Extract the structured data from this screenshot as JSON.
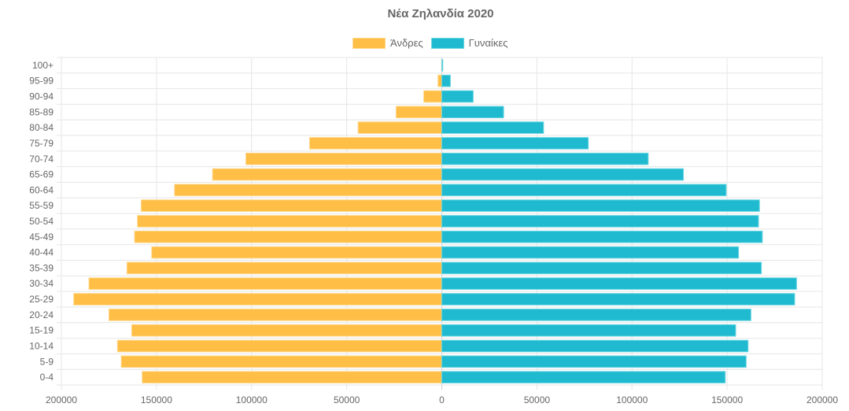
{
  "chart_data": {
    "type": "bar",
    "orientation": "horizontal",
    "title": "Νέα Ζηλανδία 2020",
    "categories": [
      "100+",
      "95-99",
      "90-94",
      "85-89",
      "80-84",
      "75-79",
      "70-74",
      "65-69",
      "60-64",
      "55-59",
      "50-54",
      "45-49",
      "40-44",
      "35-39",
      "30-34",
      "25-29",
      "20-24",
      "15-19",
      "10-14",
      "5-9",
      "0-4"
    ],
    "series": [
      {
        "name": "Άνδρες",
        "color": "#ffbe45",
        "border": "#ffd78a",
        "values": [
          -100,
          -2000,
          -9500,
          -24000,
          -44000,
          -69500,
          -103000,
          -120500,
          -140500,
          -158000,
          -160000,
          -161500,
          -152500,
          -165500,
          -185500,
          -193500,
          -175000,
          -163000,
          -170500,
          -168500,
          -157500
        ]
      },
      {
        "name": "Γυναίκες",
        "color": "#1fbad0",
        "border": "#6cd6e2",
        "values": [
          500,
          4500,
          16500,
          32500,
          53500,
          77000,
          108500,
          127000,
          149500,
          167000,
          166500,
          168500,
          156000,
          168000,
          186500,
          185500,
          162500,
          154500,
          161000,
          160000,
          149000
        ]
      }
    ],
    "xlim": [
      -200000,
      200000
    ],
    "xticks": [
      -200000,
      -150000,
      -100000,
      -50000,
      0,
      50000,
      100000,
      150000,
      200000
    ],
    "xtick_labels": [
      "200000",
      "150000",
      "100000",
      "50000",
      "0",
      "50000",
      "100000",
      "150000",
      "200000"
    ],
    "legend_position": "top-center",
    "grid": true
  }
}
